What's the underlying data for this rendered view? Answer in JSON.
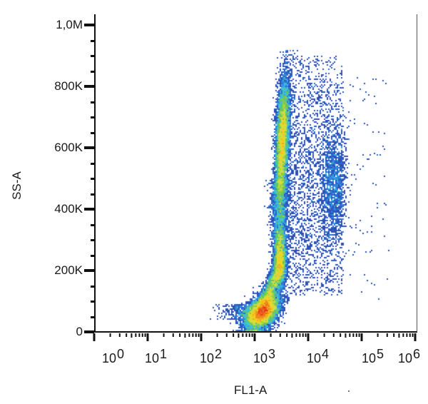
{
  "chart_data": {
    "type": "scatter",
    "subtype": "flow-cytometry-density-dot-plot",
    "title": "",
    "xlabel": "FL1-A",
    "ylabel": "SS-A",
    "xscale": "log",
    "xlim": [
      1,
      1000000
    ],
    "ylim": [
      0,
      1050000
    ],
    "x_ticks": [
      {
        "base": "10",
        "exp": "0",
        "value": 1
      },
      {
        "base": "10",
        "exp": "1",
        "value": 10
      },
      {
        "base": "10",
        "exp": "2",
        "value": 100
      },
      {
        "base": "10",
        "exp": "3",
        "value": 1000
      },
      {
        "base": "10",
        "exp": "4",
        "value": 10000
      },
      {
        "base": "10",
        "exp": "5",
        "value": 100000
      },
      {
        "base": "10",
        "exp": "6",
        "value": 1000000
      }
    ],
    "y_ticks": [
      {
        "label": "0",
        "value": 0
      },
      {
        "label": "200K",
        "value": 200000
      },
      {
        "label": "400K",
        "value": 400000
      },
      {
        "label": "600K",
        "value": 600000
      },
      {
        "label": "800K",
        "value": 800000
      },
      {
        "label": "1,0M",
        "value": 1000000
      }
    ],
    "grid": false,
    "legend": null,
    "color_scale": [
      "#2b3a99",
      "#2f6fd6",
      "#38c7e8",
      "#6cc24a",
      "#c8e04a",
      "#f5d21c",
      "#f08a1c",
      "#e3201b"
    ],
    "populations": [
      {
        "name": "low-SS cluster (highest density)",
        "x_center": 1400,
        "y_center": 65000,
        "x_log_sd": 0.16,
        "y_sd": 28000,
        "peak_color": "#e3201b"
      },
      {
        "name": "mid-SS stalk",
        "x_center": 3000,
        "y_center": 230000,
        "x_log_sd": 0.08,
        "y_sd": 45000,
        "peak_color": "#38c7e8"
      },
      {
        "name": "high-SS elongated population",
        "x_center": 3400,
        "y_center": 620000,
        "x_log_sd": 0.07,
        "y_sd": 110000,
        "peak_color": "#c8e04a"
      },
      {
        "name": "diffuse tail / sparse events",
        "x_range": [
          4000,
          50000
        ],
        "y_range": [
          100000,
          900000
        ],
        "peak_color": "#2b3a99"
      }
    ]
  },
  "axes": {
    "y_title": "SS-A",
    "x_title": "FL1-A"
  }
}
